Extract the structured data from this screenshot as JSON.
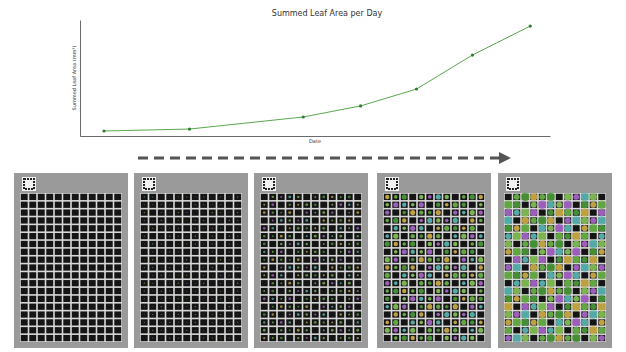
{
  "chart_data": {
    "type": "line",
    "title": "Summed Leaf Area per Day",
    "x_label": "Date",
    "y_label": "Summed Leaf Area (mm²)",
    "x": [
      5.1,
      23.3,
      47.5,
      59.7,
      71.6,
      83.5,
      95.8
    ],
    "values": [
      4.3,
      6.0,
      16.4,
      25.9,
      40.5,
      69.8,
      94.8
    ],
    "xlim": [
      0,
      100
    ],
    "ylim": [
      0,
      100
    ],
    "xticks": [],
    "yticks": [],
    "color": "#5aa84e",
    "marker": "circle",
    "line_style": "solid",
    "tick_labels": false,
    "grid": false
  }
}
